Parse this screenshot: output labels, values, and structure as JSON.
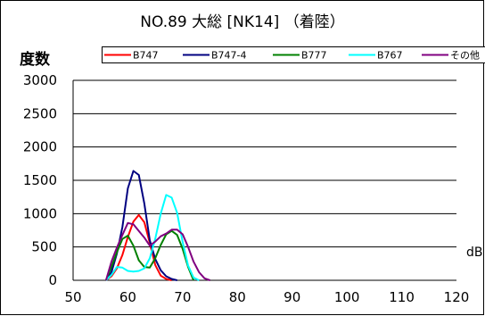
{
  "chart_data": {
    "type": "line",
    "title": "NO.89 大総 [NK14] （着陸）",
    "ylabel": "度数",
    "xlabel": "dB",
    "xlim": [
      50,
      120
    ],
    "ylim": [
      0,
      3000
    ],
    "xticks": [
      50,
      60,
      70,
      80,
      90,
      100,
      110,
      120
    ],
    "yticks": [
      0,
      500,
      1000,
      1500,
      2000,
      2500,
      3000
    ],
    "grid": "horizontal",
    "legend_position": "top",
    "series": [
      {
        "name": "B747",
        "color": "#ff0000",
        "x": [
          56,
          57,
          58,
          59,
          60,
          61,
          62,
          63,
          64,
          65,
          66,
          67,
          68
        ],
        "y": [
          0,
          60,
          180,
          380,
          650,
          880,
          980,
          870,
          560,
          230,
          70,
          20,
          0
        ]
      },
      {
        "name": "B747-4",
        "color": "#000080",
        "x": [
          56,
          57,
          58,
          59,
          60,
          61,
          62,
          63,
          64,
          65,
          66,
          67,
          68,
          69
        ],
        "y": [
          0,
          120,
          400,
          800,
          1380,
          1640,
          1580,
          1150,
          600,
          320,
          150,
          60,
          20,
          0
        ]
      },
      {
        "name": "B777",
        "color": "#008000",
        "x": [
          56,
          57,
          58,
          59,
          60,
          61,
          62,
          63,
          64,
          65,
          66,
          67,
          68,
          69,
          70,
          71,
          72
        ],
        "y": [
          0,
          200,
          420,
          620,
          670,
          520,
          300,
          200,
          190,
          330,
          530,
          690,
          740,
          680,
          470,
          200,
          0
        ]
      },
      {
        "name": "B767",
        "color": "#00ffff",
        "x": [
          56,
          57,
          58,
          59,
          60,
          61,
          62,
          63,
          64,
          65,
          66,
          67,
          68,
          69,
          70,
          71,
          72,
          73
        ],
        "y": [
          0,
          80,
          200,
          190,
          140,
          130,
          140,
          180,
          330,
          620,
          1000,
          1280,
          1240,
          1010,
          570,
          220,
          40,
          0
        ]
      },
      {
        "name": "その他",
        "color": "#800080",
        "x": [
          56,
          57,
          58,
          59,
          60,
          61,
          62,
          63,
          64,
          65,
          66,
          67,
          68,
          69,
          70,
          71,
          72,
          73,
          74,
          75
        ],
        "y": [
          0,
          280,
          490,
          680,
          860,
          840,
          740,
          640,
          520,
          580,
          660,
          700,
          760,
          760,
          690,
          500,
          280,
          120,
          30,
          0
        ]
      }
    ]
  }
}
